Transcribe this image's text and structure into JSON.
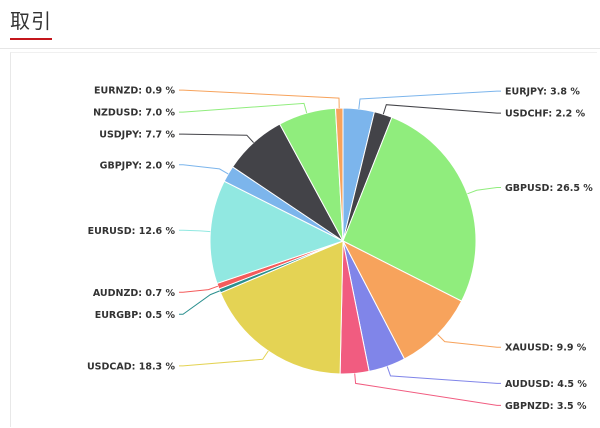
{
  "header": {
    "title": "取引",
    "accent_color": "#c4161c"
  },
  "chart_data": {
    "type": "pie",
    "title": "",
    "start_angle_deg": 0,
    "slices": [
      {
        "name": "EURJPY",
        "value": 3.8,
        "label": "EURJPY: 3.8 %",
        "color": "#7cb5ec",
        "side": "right"
      },
      {
        "name": "USDCHF",
        "value": 2.2,
        "label": "USDCHF: 2.2 %",
        "color": "#434348",
        "side": "right"
      },
      {
        "name": "GBPUSD",
        "value": 26.5,
        "label": "GBPUSD: 26.5 %",
        "color": "#90ed7d",
        "side": "right"
      },
      {
        "name": "XAUUSD",
        "value": 9.9,
        "label": "XAUUSD: 9.9 %",
        "color": "#f7a35c",
        "side": "right"
      },
      {
        "name": "AUDUSD",
        "value": 4.5,
        "label": "AUDUSD: 4.5 %",
        "color": "#8085e9",
        "side": "right"
      },
      {
        "name": "GBPNZD",
        "value": 3.5,
        "label": "GBPNZD: 3.5 %",
        "color": "#f15c80",
        "side": "right"
      },
      {
        "name": "USDCAD",
        "value": 18.3,
        "label": "USDCAD: 18.3 %",
        "color": "#e4d354",
        "side": "left"
      },
      {
        "name": "EURGBP",
        "value": 0.5,
        "label": "EURGBP: 0.5 %",
        "color": "#2b908f",
        "side": "left"
      },
      {
        "name": "AUDNZD",
        "value": 0.7,
        "label": "AUDNZD: 0.7 %",
        "color": "#f45b5b",
        "side": "left"
      },
      {
        "name": "EURUSD",
        "value": 12.6,
        "label": "EURUSD: 12.6 %",
        "color": "#91e8e1",
        "side": "left"
      },
      {
        "name": "GBPJPY",
        "value": 2.0,
        "label": "GBPJPY: 2.0 %",
        "color": "#7cb5ec",
        "side": "left"
      },
      {
        "name": "USDJPY",
        "value": 7.7,
        "label": "USDJPY: 7.7 %",
        "color": "#434348",
        "side": "left"
      },
      {
        "name": "NZDUSD",
        "value": 7.0,
        "label": "NZDUSD: 7.0 %",
        "color": "#90ed7d",
        "side": "left"
      },
      {
        "name": "EURNZD",
        "value": 0.9,
        "label": "EURNZD: 0.9 %",
        "color": "#f7a35c",
        "side": "left"
      }
    ]
  }
}
